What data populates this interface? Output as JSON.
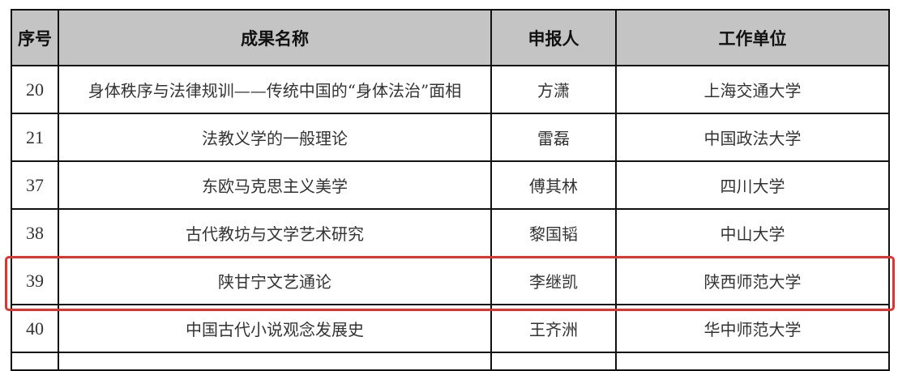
{
  "headers": {
    "index": "序号",
    "title": "成果名称",
    "applicant": "申报人",
    "unit": "工作单位"
  },
  "rows": [
    {
      "index": "20",
      "title": "身体秩序与法律规训——传统中国的“身体法治”面相",
      "applicant": "方潇",
      "unit": "上海交通大学"
    },
    {
      "index": "21",
      "title": "法教义学的一般理论",
      "applicant": "雷磊",
      "unit": "中国政法大学"
    },
    {
      "index": "37",
      "title": "东欧马克思主义美学",
      "applicant": "傅其林",
      "unit": "四川大学"
    },
    {
      "index": "38",
      "title": "古代教坊与文学艺术研究",
      "applicant": "黎国韬",
      "unit": "中山大学"
    },
    {
      "index": "39",
      "title": "陕甘宁文艺通论",
      "applicant": "李继凯",
      "unit": "陕西师范大学"
    },
    {
      "index": "40",
      "title": "中国古代小说观念发展史",
      "applicant": "王齐洲",
      "unit": "华中师范大学"
    }
  ],
  "highlight": {
    "row_index": "39",
    "color": "#e5312b"
  },
  "colors": {
    "header_bg": "#c4c4c4",
    "border": "#111111"
  }
}
